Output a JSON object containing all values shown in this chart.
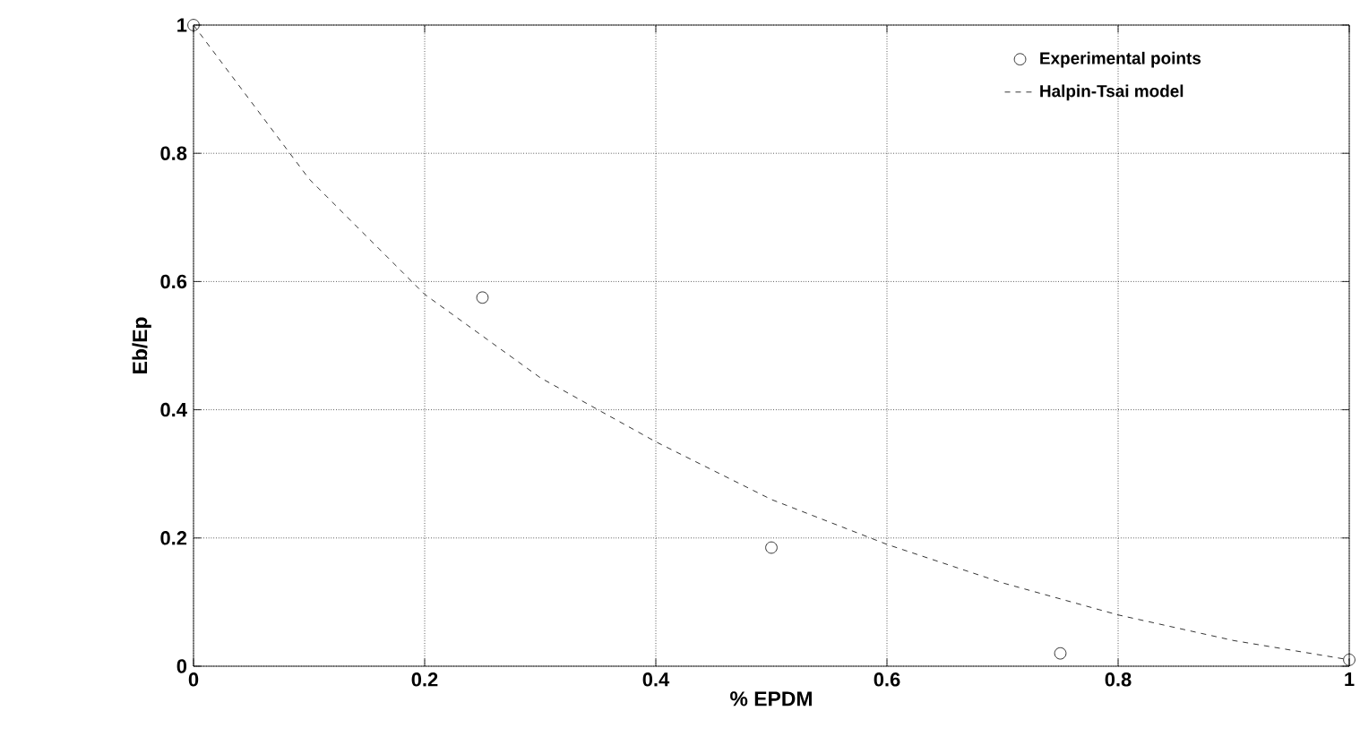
{
  "chart_data": {
    "type": "scatter",
    "xlabel": "% EPDM",
    "ylabel": "Eb/Ep",
    "xlim": [
      0,
      1
    ],
    "ylim": [
      0,
      1
    ],
    "xticks": [
      0,
      0.2,
      0.4,
      0.6,
      0.8,
      1
    ],
    "yticks": [
      0,
      0.2,
      0.4,
      0.6,
      0.8,
      1
    ],
    "grid": true,
    "legend": "top right",
    "series": [
      {
        "name": "Experimental points",
        "marker": "circle",
        "color": "#000000",
        "x": [
          0,
          0.25,
          0.5,
          0.75,
          1
        ],
        "values": [
          1,
          0.575,
          0.185,
          0.02,
          0.01
        ]
      },
      {
        "name": "Halpin-Tsai model",
        "type": "line",
        "marker": "none",
        "line_style": "dashed",
        "color": "#000000",
        "x": [
          0,
          0.1,
          0.2,
          0.3,
          0.4,
          0.5,
          0.6,
          0.7,
          0.8,
          0.9,
          1
        ],
        "values": [
          1,
          0.76,
          0.58,
          0.45,
          0.35,
          0.26,
          0.19,
          0.13,
          0.08,
          0.04,
          0.01
        ]
      }
    ]
  }
}
